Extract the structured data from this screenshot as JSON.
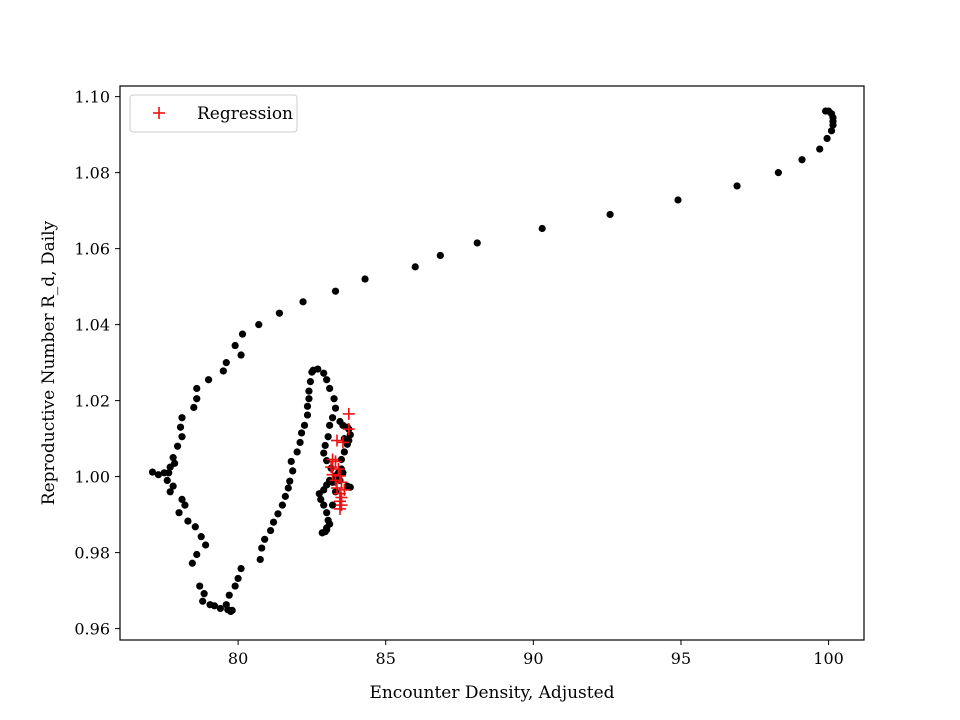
{
  "chart_data": {
    "type": "scatter",
    "xlabel": "Encounter Density, Adjusted",
    "ylabel": "Reproductive Number R_d, Daily",
    "xlim": [
      76.0,
      101.2
    ],
    "ylim": [
      0.957,
      1.1028
    ],
    "xticks": [
      80,
      85,
      90,
      95,
      100
    ],
    "yticks": [
      0.96,
      0.98,
      1.0,
      1.02,
      1.04,
      1.06,
      1.08,
      1.1
    ],
    "ytick_labels": [
      "0.96",
      "0.98",
      "1.00",
      "1.02",
      "1.04",
      "1.06",
      "1.08",
      "1.10"
    ],
    "grid": false,
    "legend_position": "top-left",
    "series": [
      {
        "marker": "circle",
        "color": "#000000",
        "points": [
          [
            100.0,
            1.0962
          ],
          [
            99.9,
            1.0962
          ],
          [
            100.1,
            1.0955
          ],
          [
            100.15,
            1.0945
          ],
          [
            100.15,
            1.0935
          ],
          [
            100.15,
            1.0925
          ],
          [
            100.1,
            1.091
          ],
          [
            99.95,
            1.089
          ],
          [
            99.7,
            1.0862
          ],
          [
            99.1,
            1.0834
          ],
          [
            98.3,
            1.08
          ],
          [
            96.9,
            1.0765
          ],
          [
            94.9,
            1.0728
          ],
          [
            92.6,
            1.069
          ],
          [
            90.3,
            1.0653
          ],
          [
            88.1,
            1.0615
          ],
          [
            86.85,
            1.0582
          ],
          [
            86.0,
            1.0552
          ],
          [
            84.3,
            1.052
          ],
          [
            83.3,
            1.0488
          ],
          [
            82.2,
            1.046
          ],
          [
            81.4,
            1.043
          ],
          [
            80.7,
            1.04
          ],
          [
            80.15,
            1.0375
          ],
          [
            79.9,
            1.0345
          ],
          [
            80.1,
            1.032
          ],
          [
            79.6,
            1.03
          ],
          [
            79.5,
            1.0278
          ],
          [
            79.0,
            1.0255
          ],
          [
            78.6,
            1.0232
          ],
          [
            78.5,
            1.0182
          ],
          [
            78.6,
            1.0205
          ],
          [
            78.1,
            1.0155
          ],
          [
            78.05,
            1.013
          ],
          [
            78.1,
            1.0105
          ],
          [
            77.95,
            1.008
          ],
          [
            77.8,
            1.005
          ],
          [
            77.85,
            1.0035
          ],
          [
            77.7,
            1.0025
          ],
          [
            77.65,
            1.001
          ],
          [
            77.5,
            1.001
          ],
          [
            77.3,
            1.0005
          ],
          [
            77.1,
            1.0012
          ],
          [
            77.6,
            0.999
          ],
          [
            77.8,
            0.9975
          ],
          [
            77.7,
            0.996
          ],
          [
            78.1,
            0.994
          ],
          [
            78.2,
            0.9925
          ],
          [
            78.0,
            0.9905
          ],
          [
            78.3,
            0.9883
          ],
          [
            78.55,
            0.9868
          ],
          [
            78.75,
            0.9842
          ],
          [
            78.9,
            0.982
          ],
          [
            78.6,
            0.9795
          ],
          [
            78.45,
            0.9772
          ],
          [
            78.7,
            0.9712
          ],
          [
            78.85,
            0.9692
          ],
          [
            78.8,
            0.9672
          ],
          [
            79.2,
            0.966
          ],
          [
            79.05,
            0.9663
          ],
          [
            79.4,
            0.9653
          ],
          [
            79.65,
            0.965
          ],
          [
            79.8,
            0.9648
          ],
          [
            79.75,
            0.9645
          ],
          [
            79.6,
            0.9663
          ],
          [
            79.7,
            0.9688
          ],
          [
            79.9,
            0.9712
          ],
          [
            80.0,
            0.9732
          ],
          [
            80.1,
            0.9758
          ],
          [
            80.75,
            0.9782
          ],
          [
            80.8,
            0.9812
          ],
          [
            80.9,
            0.9835
          ],
          [
            81.1,
            0.9858
          ],
          [
            81.2,
            0.988
          ],
          [
            81.35,
            0.9902
          ],
          [
            81.5,
            0.9925
          ],
          [
            81.6,
            0.9948
          ],
          [
            81.7,
            0.997
          ],
          [
            81.75,
            0.9988
          ],
          [
            81.85,
            1.0015
          ],
          [
            81.8,
            1.004
          ],
          [
            82.0,
            1.0065
          ],
          [
            82.1,
            1.009
          ],
          [
            82.15,
            1.0115
          ],
          [
            82.25,
            1.0135
          ],
          [
            82.35,
            1.0162
          ],
          [
            82.35,
            1.0185
          ],
          [
            82.4,
            1.0205
          ],
          [
            82.4,
            1.0225
          ],
          [
            82.45,
            1.025
          ],
          [
            82.5,
            1.0275
          ],
          [
            82.55,
            1.028
          ],
          [
            82.7,
            1.0283
          ],
          [
            82.9,
            1.0272
          ],
          [
            83.0,
            1.0255
          ],
          [
            83.1,
            1.0232
          ],
          [
            83.25,
            1.0205
          ],
          [
            83.3,
            1.018
          ],
          [
            83.2,
            1.0155
          ],
          [
            83.1,
            1.0135
          ],
          [
            83.05,
            1.0105
          ],
          [
            82.95,
            1.0082
          ],
          [
            82.9,
            1.0062
          ],
          [
            83.0,
            1.0042
          ],
          [
            83.15,
            1.0022
          ],
          [
            83.3,
            1.0002
          ],
          [
            83.1,
            0.999
          ],
          [
            83.0,
            0.9978
          ],
          [
            82.9,
            0.9965
          ],
          [
            82.75,
            0.9955
          ],
          [
            82.8,
            0.994
          ],
          [
            82.9,
            0.9925
          ],
          [
            83.0,
            0.9905
          ],
          [
            83.05,
            0.9885
          ],
          [
            83.0,
            0.9865
          ],
          [
            82.95,
            0.9855
          ],
          [
            82.85,
            0.9852
          ],
          [
            83.0,
            0.986
          ],
          [
            83.1,
            0.9875
          ],
          [
            83.2,
            0.9925
          ],
          [
            83.3,
            0.996
          ],
          [
            83.4,
            1.001
          ],
          [
            83.5,
            1.0045
          ],
          [
            83.6,
            1.0065
          ],
          [
            83.7,
            1.0085
          ],
          [
            83.8,
            1.011
          ],
          [
            83.75,
            1.0125
          ],
          [
            83.7,
            1.013
          ],
          [
            83.55,
            1.0135
          ],
          [
            83.45,
            1.0145
          ],
          [
            83.6,
            1.01
          ],
          [
            83.75,
            1.0095
          ],
          [
            83.5,
            1.002
          ],
          [
            83.3,
            0.999
          ],
          [
            83.45,
            0.999
          ],
          [
            83.7,
            0.9975
          ],
          [
            83.8,
            0.9972
          ],
          [
            83.55,
            1.001
          ],
          [
            83.3,
            1.0
          ],
          [
            83.2,
            0.9985
          ]
        ]
      },
      {
        "name": "Regression",
        "marker": "plus",
        "color": "#ee1111",
        "points": [
          [
            83.75,
            1.0165
          ],
          [
            83.75,
            1.0125
          ],
          [
            83.35,
            1.0095
          ],
          [
            83.55,
            1.009
          ],
          [
            83.2,
            1.0045
          ],
          [
            83.3,
            1.004
          ],
          [
            83.15,
            1.0025
          ],
          [
            83.4,
            1.002
          ],
          [
            83.2,
            1.0005
          ],
          [
            83.45,
            1.0002
          ],
          [
            83.3,
            0.999
          ],
          [
            83.5,
            0.9985
          ],
          [
            83.35,
            0.997
          ],
          [
            83.6,
            0.9965
          ],
          [
            83.45,
            0.9955
          ],
          [
            83.5,
            0.9945
          ],
          [
            83.45,
            0.9935
          ],
          [
            83.5,
            0.9925
          ],
          [
            83.45,
            0.9915
          ]
        ]
      }
    ]
  }
}
